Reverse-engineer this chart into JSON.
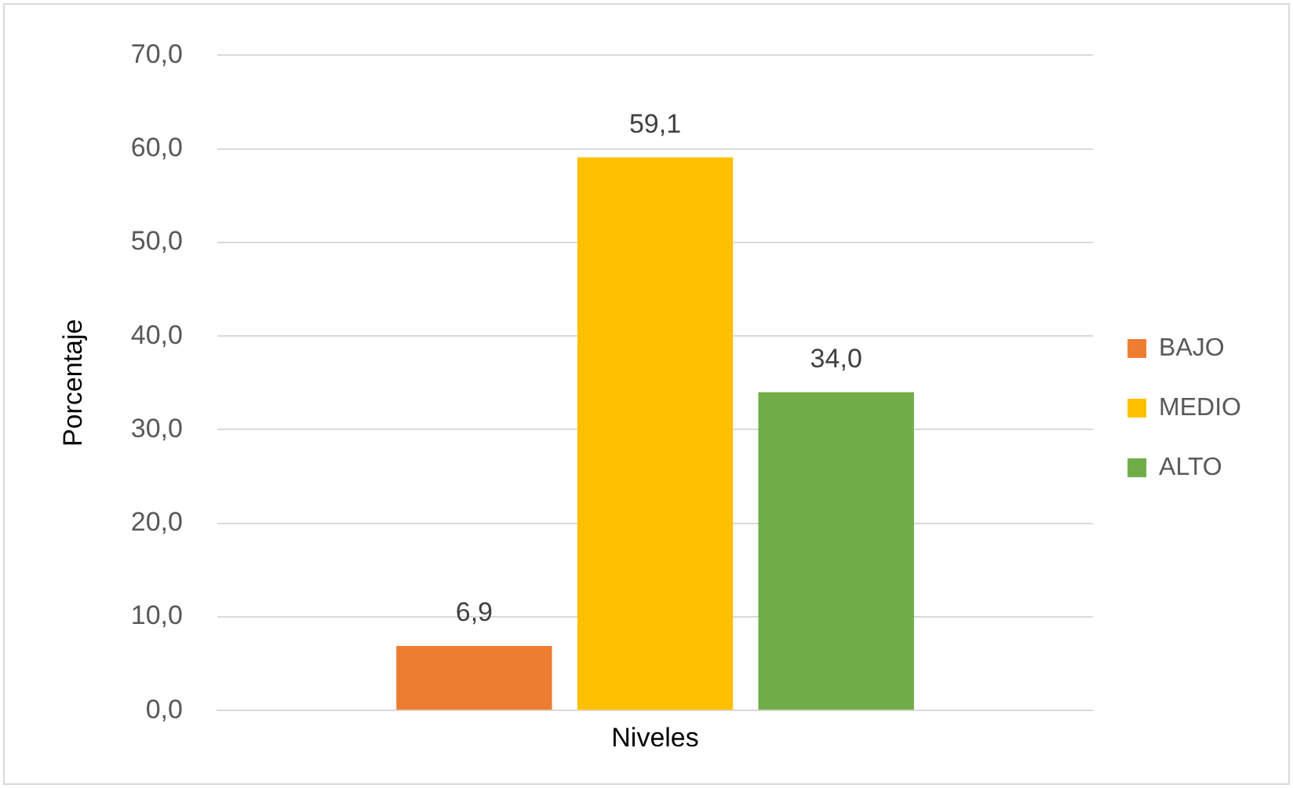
{
  "chart_data": {
    "type": "bar",
    "ylabel": "Porcentaje",
    "categories": [
      "Niveles"
    ],
    "series": [
      {
        "name": "BAJO",
        "color": "#ed7d31",
        "values": [
          6.9
        ],
        "value_labels": [
          "6,9"
        ]
      },
      {
        "name": "MEDIO",
        "color": "#ffc000",
        "values": [
          59.1
        ],
        "value_labels": [
          "59,1"
        ]
      },
      {
        "name": "ALTO",
        "color": "#70ad47",
        "values": [
          34.0
        ],
        "value_labels": [
          "34,0"
        ]
      }
    ],
    "ylim": [
      0,
      70
    ],
    "yticks": [
      {
        "value": 0,
        "label": "0,0"
      },
      {
        "value": 10,
        "label": "10,0"
      },
      {
        "value": 20,
        "label": "20,0"
      },
      {
        "value": 30,
        "label": "30,0"
      },
      {
        "value": 40,
        "label": "40,0"
      },
      {
        "value": 50,
        "label": "50,0"
      },
      {
        "value": 60,
        "label": "60,0"
      },
      {
        "value": 70,
        "label": "70,0"
      }
    ],
    "grid": "y",
    "legend": "right"
  }
}
